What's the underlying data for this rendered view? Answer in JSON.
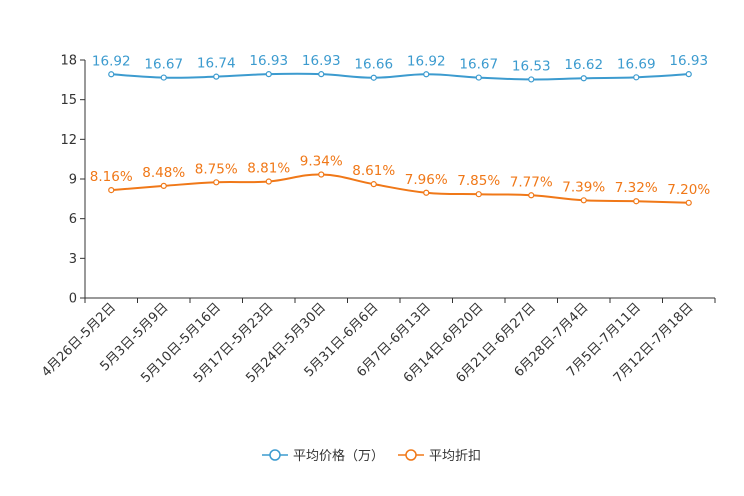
{
  "chart_data": {
    "type": "line",
    "title": "",
    "xlabel": "",
    "ylabel": "",
    "ylim": [
      0,
      18
    ],
    "yticks": [
      0,
      3,
      6,
      9,
      12,
      15,
      18
    ],
    "grid": false,
    "legend_position": "bottom",
    "categories": [
      "4月26日-5月2日",
      "5月3日-5月9日",
      "5月10日-5月16日",
      "5月17日-5月23日",
      "5月24日-5月30日",
      "5月31日-6月6日",
      "6月7日-6月13日",
      "6月14日-6月20日",
      "6月21日-6月27日",
      "6月28日-7月4日",
      "7月5日-7月11日",
      "7月12日-7月18日"
    ],
    "series": [
      {
        "name": "平均价格（万）",
        "color": "#3c9bcf",
        "values": [
          16.92,
          16.67,
          16.74,
          16.93,
          16.93,
          16.66,
          16.92,
          16.67,
          16.53,
          16.62,
          16.69,
          16.93
        ],
        "labels": [
          "16.92",
          "16.67",
          "16.74",
          "16.93",
          "16.93",
          "16.66",
          "16.92",
          "16.67",
          "16.53",
          "16.62",
          "16.69",
          "16.93"
        ]
      },
      {
        "name": "平均折扣",
        "color": "#f07818",
        "values": [
          8.16,
          8.48,
          8.75,
          8.81,
          9.34,
          8.61,
          7.96,
          7.85,
          7.77,
          7.39,
          7.32,
          7.2
        ],
        "labels": [
          "8.16%",
          "8.48%",
          "8.75%",
          "8.81%",
          "9.34%",
          "8.61%",
          "7.96%",
          "7.85%",
          "7.77%",
          "7.39%",
          "7.32%",
          "7.20%"
        ]
      }
    ]
  }
}
